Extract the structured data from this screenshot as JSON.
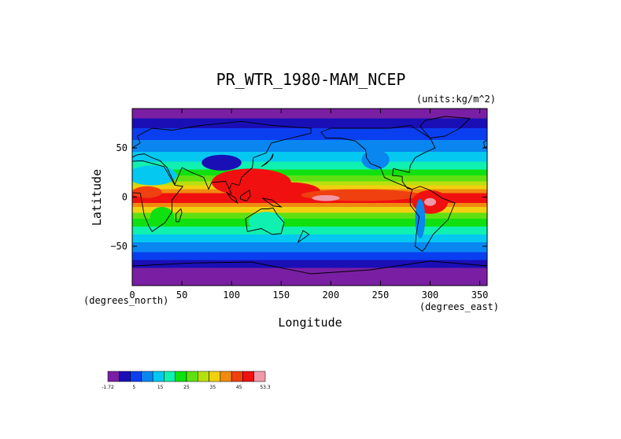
{
  "chart_data": {
    "type": "heatmap",
    "title": "PR_WTR_1980-MAM_NCEP",
    "units_label": "(units:kg/m^2)",
    "xlabel": "Longitude",
    "ylabel": "Latitude",
    "x_units": "(degrees_east)",
    "y_units": "(degrees_north)",
    "xlim": [
      0,
      357.5
    ],
    "ylim": [
      -90,
      90
    ],
    "x_ticks": [
      0,
      50,
      100,
      150,
      200,
      250,
      300,
      350
    ],
    "y_ticks": [
      50,
      0,
      -50
    ],
    "x_tick_labels": [
      "0",
      "50",
      "100",
      "150",
      "200",
      "250",
      "300",
      "350"
    ],
    "y_tick_labels": [
      "50",
      "0",
      "−50"
    ],
    "colorbar": {
      "min": -1.72,
      "max": 53.3,
      "tick_labels": [
        "-1.72",
        "5",
        "15",
        "25",
        "35",
        "45",
        "53.3"
      ],
      "colors": [
        "#7a1fa3",
        "#1a0fb5",
        "#0a3ff0",
        "#0a86f0",
        "#05c8f0",
        "#10f0b0",
        "#10e010",
        "#60e010",
        "#b8e010",
        "#f0d010",
        "#f08a10",
        "#f04010",
        "#f01010",
        "#f098a8"
      ]
    },
    "legend_placement": "bottom-left",
    "grid": false,
    "description_values": {
      "min_value": -1.72,
      "max_value": 53.3
    }
  }
}
